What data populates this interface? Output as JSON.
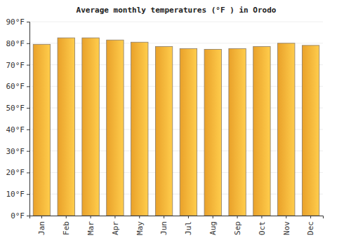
{
  "chart_data": {
    "type": "bar",
    "title": "Average monthly temperatures (°F ) in Orodo",
    "categories": [
      "Jan",
      "Feb",
      "Mar",
      "Apr",
      "May",
      "Jun",
      "Jul",
      "Aug",
      "Sep",
      "Oct",
      "Nov",
      "Dec"
    ],
    "values": [
      79.5,
      82.5,
      82.5,
      81.5,
      80.5,
      78.5,
      77.5,
      77.2,
      77.5,
      78.5,
      80,
      79
    ],
    "color": "#ffb02e",
    "ylim": [
      0,
      90
    ],
    "yticks": [
      {
        "value": 0,
        "label": "0°F"
      },
      {
        "value": 10,
        "label": "10°F"
      },
      {
        "value": 20,
        "label": "20°F"
      },
      {
        "value": 30,
        "label": "30°F"
      },
      {
        "value": 40,
        "label": "40°F"
      },
      {
        "value": 50,
        "label": "50°F"
      },
      {
        "value": 60,
        "label": "60°F"
      },
      {
        "value": 70,
        "label": "70°F"
      },
      {
        "value": 80,
        "label": "80°F"
      },
      {
        "value": 90,
        "label": "90°F"
      }
    ],
    "grid": true
  }
}
